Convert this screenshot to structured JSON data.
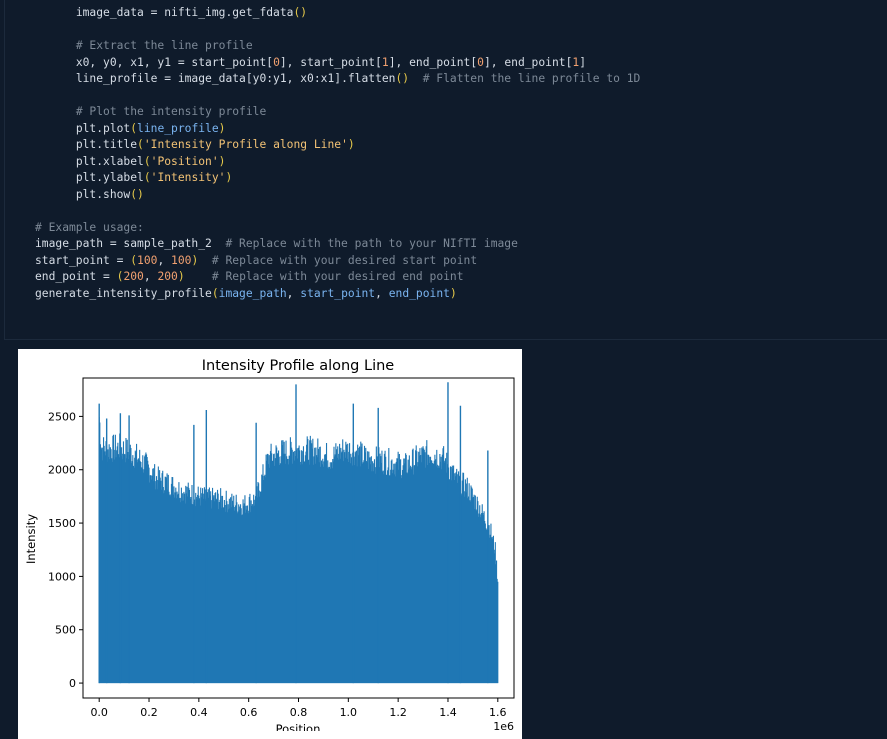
{
  "code_lines": [
    {
      "indent": 6,
      "parts": [
        {
          "t": "image_data = nifti_img.get_fdata",
          "c": ""
        },
        {
          "t": "()",
          "c": "pl"
        }
      ]
    },
    {
      "indent": 0,
      "parts": []
    },
    {
      "indent": 6,
      "parts": [
        {
          "t": "# Extract the line profile",
          "c": "cm"
        }
      ]
    },
    {
      "indent": 6,
      "parts": [
        {
          "t": "x0, y0, x1, y1 = start_point[",
          "c": ""
        },
        {
          "t": "0",
          "c": "nm"
        },
        {
          "t": "], start_point[",
          "c": ""
        },
        {
          "t": "1",
          "c": "nm"
        },
        {
          "t": "], end_point[",
          "c": ""
        },
        {
          "t": "0",
          "c": "nm"
        },
        {
          "t": "], end_point[",
          "c": ""
        },
        {
          "t": "1",
          "c": "nm"
        },
        {
          "t": "]",
          "c": ""
        }
      ]
    },
    {
      "indent": 6,
      "parts": [
        {
          "t": "line_profile = image_data[y0:y1, x0:x1].flatten",
          "c": ""
        },
        {
          "t": "()",
          "c": "pl"
        },
        {
          "t": "  # Flatten the line profile to 1D",
          "c": "cm"
        }
      ]
    },
    {
      "indent": 0,
      "parts": []
    },
    {
      "indent": 6,
      "parts": [
        {
          "t": "# Plot the intensity profile",
          "c": "cm"
        }
      ]
    },
    {
      "indent": 6,
      "parts": [
        {
          "t": "plt.plot",
          "c": ""
        },
        {
          "t": "(",
          "c": "pl"
        },
        {
          "t": "line_profile",
          "c": "pm"
        },
        {
          "t": ")",
          "c": "pl"
        }
      ]
    },
    {
      "indent": 6,
      "parts": [
        {
          "t": "plt.title",
          "c": ""
        },
        {
          "t": "(",
          "c": "pl"
        },
        {
          "t": "'Intensity Profile along Line'",
          "c": "st"
        },
        {
          "t": ")",
          "c": "pl"
        }
      ]
    },
    {
      "indent": 6,
      "parts": [
        {
          "t": "plt.xlabel",
          "c": ""
        },
        {
          "t": "(",
          "c": "pl"
        },
        {
          "t": "'Position'",
          "c": "st"
        },
        {
          "t": ")",
          "c": "pl"
        }
      ]
    },
    {
      "indent": 6,
      "parts": [
        {
          "t": "plt.ylabel",
          "c": ""
        },
        {
          "t": "(",
          "c": "pl"
        },
        {
          "t": "'Intensity'",
          "c": "st"
        },
        {
          "t": ")",
          "c": "pl"
        }
      ]
    },
    {
      "indent": 6,
      "parts": [
        {
          "t": "plt.show",
          "c": ""
        },
        {
          "t": "()",
          "c": "pl"
        }
      ]
    },
    {
      "indent": 0,
      "parts": []
    },
    {
      "indent": 0,
      "parts": [
        {
          "t": "# Example usage:",
          "c": "cm"
        }
      ]
    },
    {
      "indent": 0,
      "parts": [
        {
          "t": "image_path = sample_path_2  ",
          "c": ""
        },
        {
          "t": "# Replace with the path to your NIfTI image",
          "c": "cm"
        }
      ]
    },
    {
      "indent": 0,
      "parts": [
        {
          "t": "start_point = ",
          "c": ""
        },
        {
          "t": "(",
          "c": "pl"
        },
        {
          "t": "100",
          "c": "nm"
        },
        {
          "t": ", ",
          "c": ""
        },
        {
          "t": "100",
          "c": "nm"
        },
        {
          "t": ")",
          "c": "pl"
        },
        {
          "t": "  # Replace with your desired start point",
          "c": "cm"
        }
      ]
    },
    {
      "indent": 0,
      "parts": [
        {
          "t": "end_point = ",
          "c": ""
        },
        {
          "t": "(",
          "c": "pl"
        },
        {
          "t": "200",
          "c": "nm"
        },
        {
          "t": ", ",
          "c": ""
        },
        {
          "t": "200",
          "c": "nm"
        },
        {
          "t": ")",
          "c": "pl"
        },
        {
          "t": "    # Replace with your desired end point",
          "c": "cm"
        }
      ]
    },
    {
      "indent": 0,
      "parts": [
        {
          "t": "generate_intensity_profile",
          "c": ""
        },
        {
          "t": "(",
          "c": "pl"
        },
        {
          "t": "image_path",
          "c": "pm"
        },
        {
          "t": ", ",
          "c": ""
        },
        {
          "t": "start_point",
          "c": "pm"
        },
        {
          "t": ", ",
          "c": ""
        },
        {
          "t": "end_point",
          "c": "pm"
        },
        {
          "t": ")",
          "c": "pl"
        }
      ]
    }
  ],
  "chart_data": {
    "type": "line",
    "title": "Intensity Profile along Line",
    "xlabel": "Position",
    "ylabel": "Intensity",
    "xlim": [
      -65000,
      1665000
    ],
    "ylim": [
      -140,
      2860
    ],
    "x_offset_text": "1e6",
    "xticks": [
      0,
      200000,
      400000,
      600000,
      800000,
      1000000,
      1200000,
      1400000,
      1600000
    ],
    "xtick_labels": [
      "0.0",
      "0.2",
      "0.4",
      "0.6",
      "0.8",
      "1.0",
      "1.2",
      "1.4",
      "1.6"
    ],
    "yticks": [
      0,
      500,
      1000,
      1500,
      2000,
      2500
    ],
    "ytick_labels": [
      "0",
      "500",
      "1000",
      "1500",
      "2000",
      "2500"
    ],
    "line_color": "#1f77b4",
    "series": [
      {
        "x_range": [
          0,
          1600000
        ],
        "baseline": 0,
        "upper_envelope": {
          "x": [
            0,
            10000,
            30000,
            80000,
            130000,
            180000,
            230000,
            280000,
            330000,
            380000,
            430000,
            480000,
            530000,
            580000,
            630000,
            680000,
            730000,
            780000,
            830000,
            880000,
            930000,
            980000,
            1030000,
            1080000,
            1130000,
            1180000,
            1230000,
            1280000,
            1330000,
            1380000,
            1430000,
            1480000,
            1530000,
            1570000,
            1590000,
            1600000
          ],
          "y": [
            2600,
            2300,
            2280,
            2300,
            2250,
            2150,
            2000,
            1950,
            1880,
            1840,
            1800,
            1800,
            1760,
            1740,
            1800,
            2200,
            2250,
            2270,
            2280,
            2260,
            2200,
            2280,
            2260,
            2180,
            2180,
            2150,
            2120,
            2200,
            2250,
            2200,
            2000,
            1900,
            1700,
            1500,
            1300,
            1000
          ]
        },
        "peaks": [
          {
            "x": 0,
            "y": 2620
          },
          {
            "x": 30000,
            "y": 2480
          },
          {
            "x": 85000,
            "y": 2530
          },
          {
            "x": 120000,
            "y": 2510
          },
          {
            "x": 380000,
            "y": 2420
          },
          {
            "x": 430000,
            "y": 2560
          },
          {
            "x": 630000,
            "y": 2440
          },
          {
            "x": 790000,
            "y": 2800
          },
          {
            "x": 1020000,
            "y": 2620
          },
          {
            "x": 1120000,
            "y": 2580
          },
          {
            "x": 1400000,
            "y": 2820
          },
          {
            "x": 1450000,
            "y": 2600
          },
          {
            "x": 1560000,
            "y": 2180
          }
        ]
      }
    ]
  }
}
